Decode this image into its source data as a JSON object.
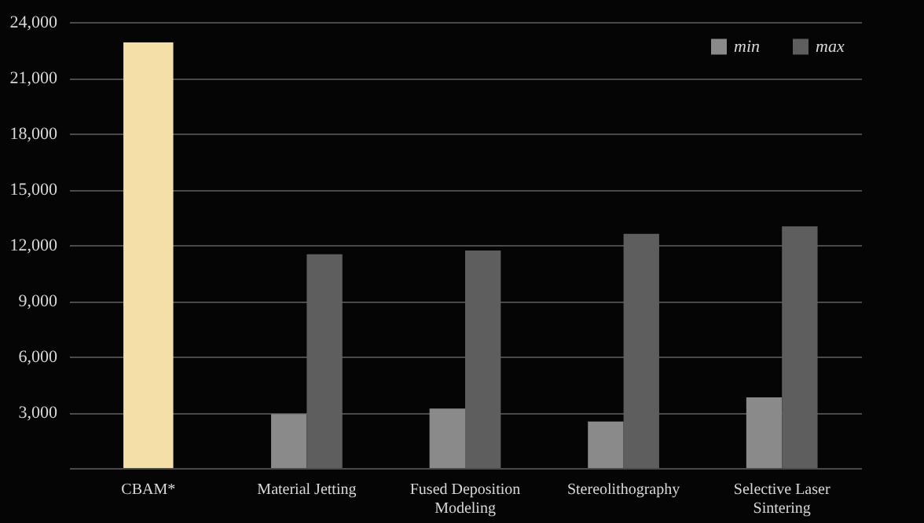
{
  "chart_data": {
    "type": "bar",
    "categories": [
      "CBAM*",
      "Material Jetting",
      "Fused Deposition Modeling",
      "Stereolithography",
      "Selective Laser Sintering"
    ],
    "series": [
      {
        "color": "#f5dfa8",
        "values": [
          22900,
          null,
          null,
          null,
          null
        ]
      },
      {
        "name": "min",
        "color": "#8a8a8a",
        "values": [
          null,
          2900,
          3200,
          2500,
          3800
        ]
      },
      {
        "name": "max",
        "color": "#5e5e5e",
        "values": [
          null,
          11500,
          11700,
          12600,
          13000
        ]
      }
    ],
    "ylim": [
      0,
      24000
    ],
    "yticks": [
      {
        "value": 0,
        "label": null
      },
      {
        "value": 3000,
        "label": "3,000"
      },
      {
        "value": 6000,
        "label": "6,000"
      },
      {
        "value": 9000,
        "label": "9,000"
      },
      {
        "value": 12000,
        "label": "12,000"
      },
      {
        "value": 15000,
        "label": "15,000"
      },
      {
        "value": 18000,
        "label": "18,000"
      },
      {
        "value": 21000,
        "label": "21,000"
      },
      {
        "value": 24000,
        "label": "24,000"
      }
    ],
    "grid": "y",
    "legend": "top right"
  }
}
